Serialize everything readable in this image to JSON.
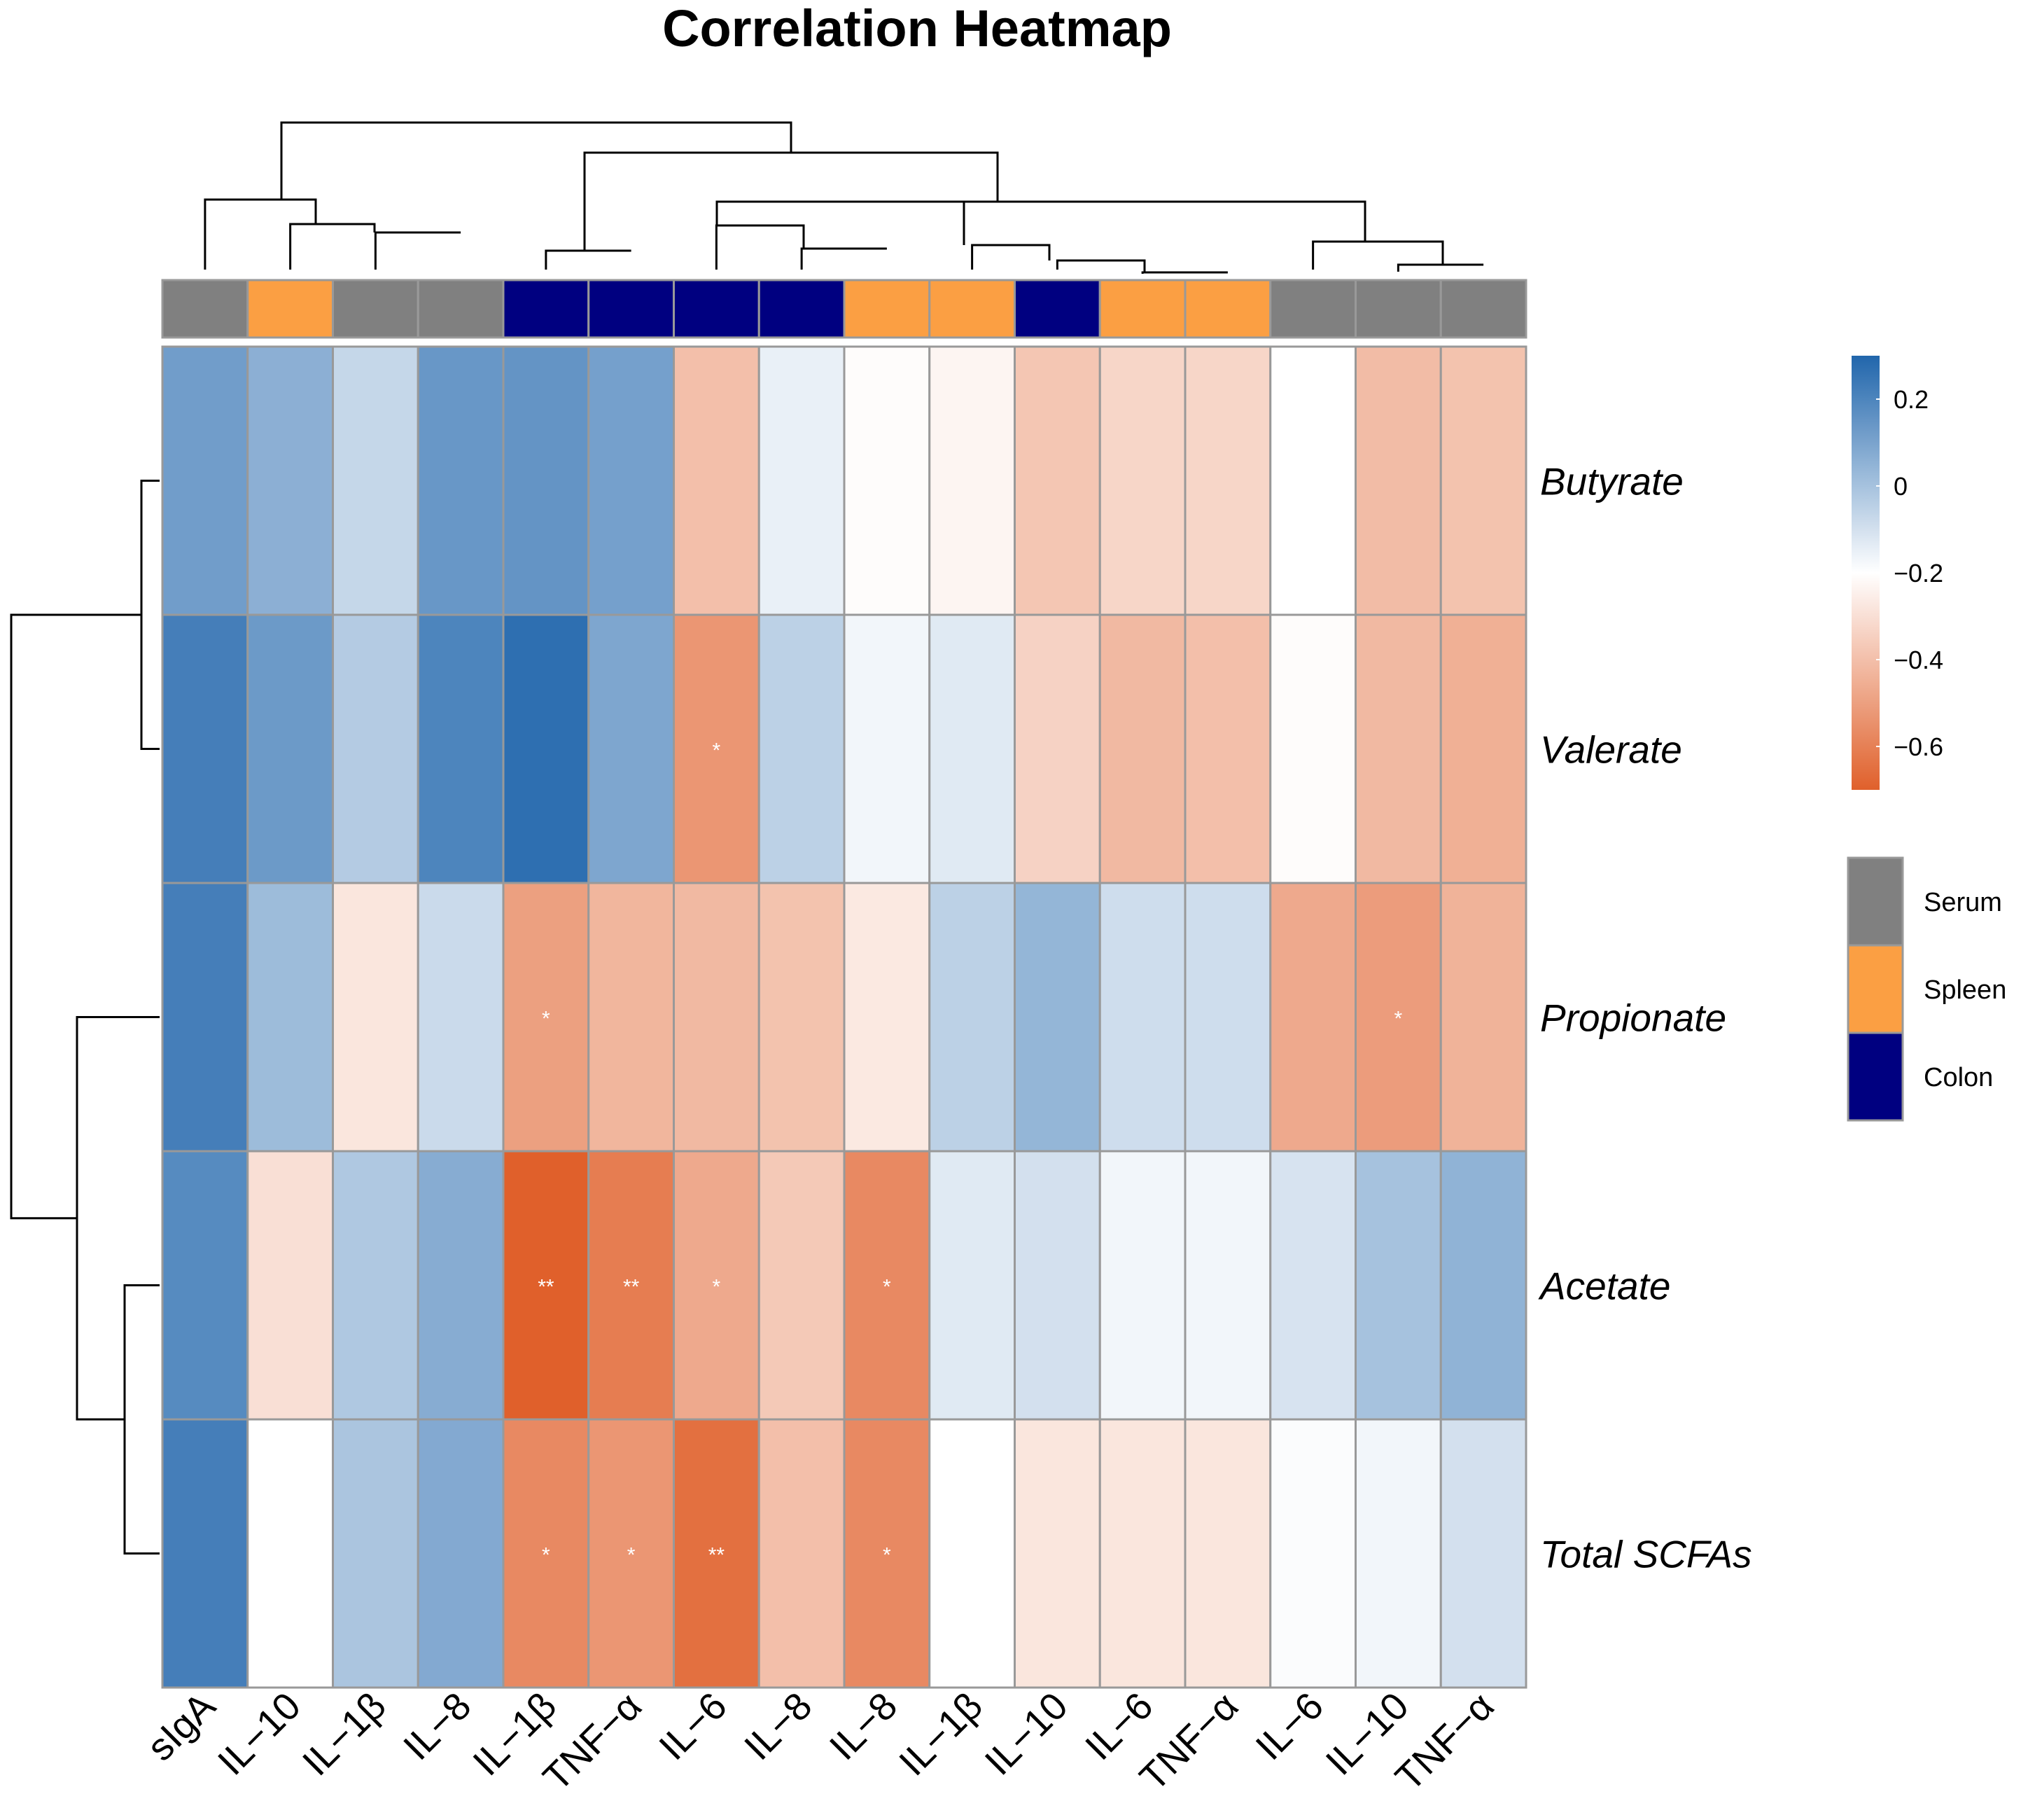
{
  "chart_data": {
    "type": "heatmap",
    "title": "Correlation Heatmap",
    "columns": [
      {
        "label": "sIgA",
        "group": "Serum"
      },
      {
        "label": "IL−10",
        "group": "Spleen"
      },
      {
        "label": "IL−1β",
        "group": "Serum"
      },
      {
        "label": "IL−8",
        "group": "Serum"
      },
      {
        "label": "IL−1β",
        "group": "Colon"
      },
      {
        "label": "TNF−α",
        "group": "Colon"
      },
      {
        "label": "IL−6",
        "group": "Colon"
      },
      {
        "label": "IL−8",
        "group": "Colon"
      },
      {
        "label": "IL−8",
        "group": "Spleen"
      },
      {
        "label": "IL−1β",
        "group": "Spleen"
      },
      {
        "label": "IL−10",
        "group": "Colon"
      },
      {
        "label": "IL−6",
        "group": "Spleen"
      },
      {
        "label": "TNF−α",
        "group": "Spleen"
      },
      {
        "label": "IL−6",
        "group": "Serum"
      },
      {
        "label": "IL−10",
        "group": "Serum"
      },
      {
        "label": "TNF−α",
        "group": "Serum"
      }
    ],
    "rows": [
      "Butyrate",
      "Valerate",
      "Propionate",
      "Acetate",
      "Total SCFAs"
    ],
    "values": [
      [
        0.12,
        0.06,
        -0.07,
        0.14,
        0.15,
        0.11,
        -0.4,
        -0.15,
        -0.21,
        -0.23,
        -0.38,
        -0.33,
        -0.33,
        -0.2,
        -0.41,
        -0.39
      ],
      [
        0.22,
        0.13,
        -0.03,
        0.2,
        0.27,
        0.09,
        -0.53,
        -0.05,
        -0.17,
        -0.13,
        -0.34,
        -0.42,
        -0.4,
        -0.21,
        -0.42,
        -0.45
      ],
      [
        0.22,
        0.02,
        -0.28,
        -0.08,
        -0.5,
        -0.43,
        -0.42,
        -0.39,
        -0.27,
        -0.05,
        0.04,
        -0.09,
        -0.09,
        -0.47,
        -0.51,
        -0.44
      ],
      [
        0.18,
        -0.3,
        -0.02,
        0.07,
        -0.7,
        -0.61,
        -0.47,
        -0.37,
        -0.57,
        -0.13,
        -0.1,
        -0.17,
        -0.17,
        -0.11,
        0.0,
        0.05
      ],
      [
        0.22,
        -0.2,
        -0.01,
        0.08,
        -0.57,
        -0.53,
        -0.65,
        -0.4,
        -0.57,
        -0.2,
        -0.28,
        -0.28,
        -0.28,
        -0.19,
        -0.17,
        -0.1
      ]
    ],
    "significance": [
      [
        "",
        "",
        "",
        "",
        "",
        "",
        "",
        "",
        "",
        "",
        "",
        "",
        "",
        "",
        "",
        ""
      ],
      [
        "",
        "",
        "",
        "",
        "",
        "",
        "*",
        "",
        "",
        "",
        "",
        "",
        "",
        "",
        "",
        ""
      ],
      [
        "",
        "",
        "",
        "",
        "*",
        "",
        "",
        "",
        "",
        "",
        "",
        "",
        "",
        "",
        "*",
        ""
      ],
      [
        "",
        "",
        "",
        "",
        "**",
        "**",
        "*",
        "",
        "*",
        "",
        "",
        "",
        "",
        "",
        "",
        ""
      ],
      [
        "",
        "",
        "",
        "",
        "*",
        "*",
        "**",
        "",
        "*",
        "",
        "",
        "",
        "",
        "",
        "",
        ""
      ]
    ],
    "colorbar": {
      "range": [
        -0.7,
        0.3
      ],
      "ticks": [
        {
          "value": 0.2,
          "label": "0.2"
        },
        {
          "value": 0,
          "label": "0"
        },
        {
          "value": -0.2,
          "label": "−0.2"
        },
        {
          "value": -0.4,
          "label": "−0.4"
        },
        {
          "value": -0.6,
          "label": "−0.6"
        }
      ],
      "high_color": "#2166ac",
      "mid_color": "#ffffff",
      "low_color": "#e0602b",
      "mid_value": -0.2
    },
    "legend": {
      "placement": "right",
      "items": [
        {
          "label": "Serum",
          "color": "#808080"
        },
        {
          "label": "Spleen",
          "color": "#fb9f43"
        },
        {
          "label": "Colon",
          "color": "#000080"
        }
      ]
    }
  }
}
